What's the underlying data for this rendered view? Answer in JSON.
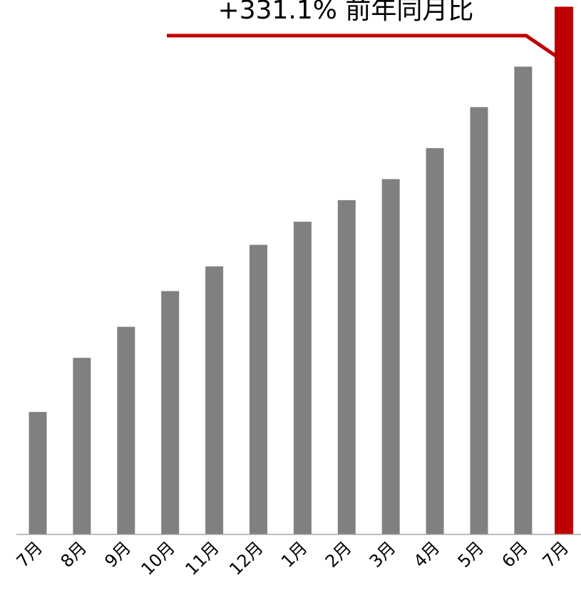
{
  "chart_data": {
    "type": "bar",
    "categories": [
      "7月",
      "8月",
      "9月",
      "10月",
      "11月",
      "12月",
      "1月",
      "2月",
      "3月",
      "4月",
      "5月",
      "6月",
      "7月"
    ],
    "values": [
      23.3,
      33.6,
      39.5,
      46.3,
      51.0,
      55.1,
      59.5,
      63.6,
      67.6,
      73.5,
      81.3,
      89.0,
      100.4
    ],
    "ylim": [
      0,
      101
    ],
    "highlight_index": 12,
    "annotation": "+331.1% 前年同月比",
    "colors": {
      "bar": "#808080",
      "highlight": "#c00000",
      "axis": "#a6a6a6"
    },
    "grid": false,
    "legend": "none"
  }
}
